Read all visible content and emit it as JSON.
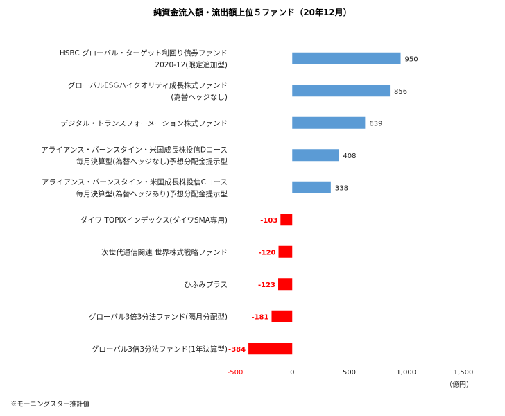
{
  "chart_data": {
    "type": "bar",
    "orientation": "horizontal",
    "title": "純資金流入額・流出額上位５ファンド（20年12月）",
    "unit": "（億円）",
    "note": "※モーニングスター推計値",
    "categories": [
      [
        "HSBC グローバル・ターゲット利回り債券ファンド",
        "2020-12(限定追加型)"
      ],
      [
        "グローバルESGハイクオリティ成長株式ファンド",
        "(為替ヘッジなし)"
      ],
      [
        "デジタル・トランスフォーメーション株式ファンド"
      ],
      [
        "アライアンス・バーンスタイン・米国成長株投信Dコース",
        "毎月決算型(為替ヘッジなし)予想分配金提示型"
      ],
      [
        "アライアンス・バーンスタイン・米国成長株投信Cコース",
        "毎月決算型(為替ヘッジあり)予想分配金提示型"
      ],
      [
        "ダイワ TOPIXインデックス(ダイワSMA専用)"
      ],
      [
        "次世代通信関連 世界株式戦略ファンド"
      ],
      [
        "ひふみプラス"
      ],
      [
        "グローバル3倍3分法ファンド(隔月分配型)"
      ],
      [
        "グローバル3倍3分法ファンド(1年決算型)"
      ]
    ],
    "values": [
      950,
      856,
      639,
      408,
      338,
      -103,
      -120,
      -123,
      -181,
      -384
    ],
    "value_labels": [
      "950",
      "856",
      "639",
      "408",
      "338",
      "-103",
      "-120",
      "-123",
      "-181",
      "-384"
    ],
    "xlim": [
      -500,
      1500
    ],
    "xticks": [
      -500,
      0,
      500,
      1000,
      1500
    ],
    "xtick_labels": [
      "-500",
      "0",
      "500",
      "1,000",
      "1,500"
    ],
    "grid": false,
    "colors": {
      "positive": "#5b9bd5",
      "negative": "#ff0000",
      "negative_text": "#ff0000"
    }
  }
}
